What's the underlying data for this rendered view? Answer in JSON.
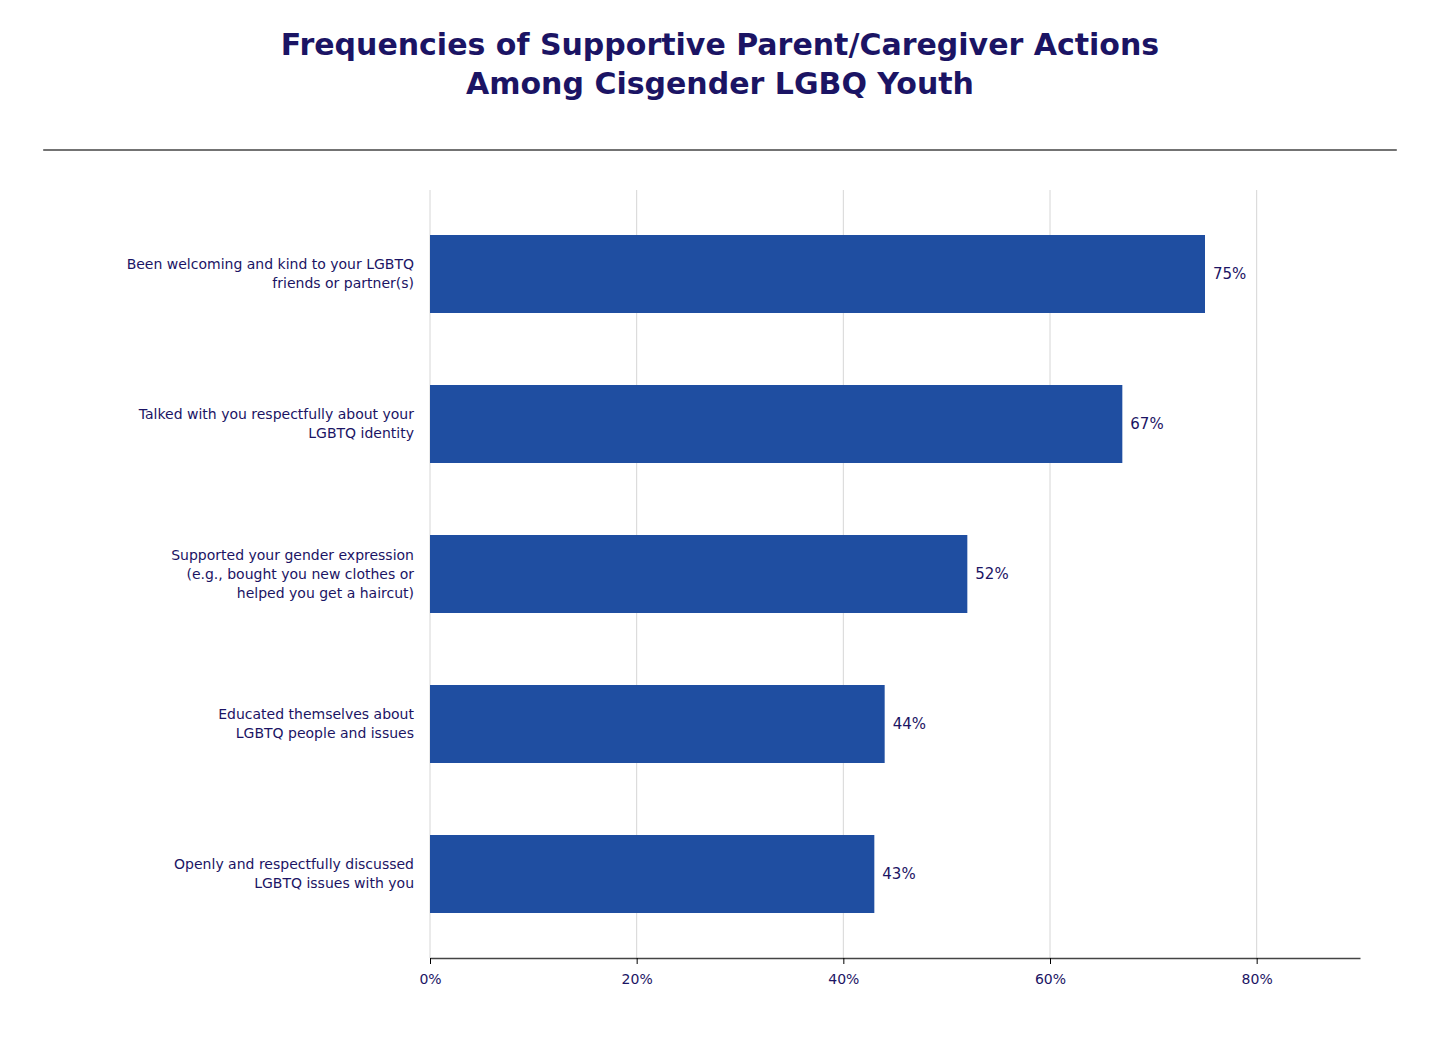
{
  "chart_data": {
    "type": "bar",
    "orientation": "horizontal",
    "title": "Frequencies of Supportive Parent/Caregiver Actions\nAmong Cisgender LGBQ Youth",
    "categories": [
      "Been welcoming and kind to your LGBTQ\nfriends or partner(s)",
      "Talked with you respectfully about your\nLGBTQ identity",
      "Supported your gender expression\n(e.g., bought you new clothes or\nhelped you get a haircut)",
      "Educated themselves about\nLGBTQ people and issues",
      "Openly and respectfully discussed\nLGBTQ issues with you"
    ],
    "values": [
      75,
      67,
      52,
      44,
      43
    ],
    "value_labels": [
      "75%",
      "67%",
      "52%",
      "44%",
      "43%"
    ],
    "data_labels": true,
    "color": "#1f4ea1",
    "xlim": [
      0,
      90
    ],
    "xticks": [
      {
        "value": 0,
        "label": "0%"
      },
      {
        "value": 20,
        "label": "20%"
      },
      {
        "value": 40,
        "label": "40%"
      },
      {
        "value": 60,
        "label": "60%"
      },
      {
        "value": 80,
        "label": "80%"
      }
    ],
    "grid": true
  }
}
